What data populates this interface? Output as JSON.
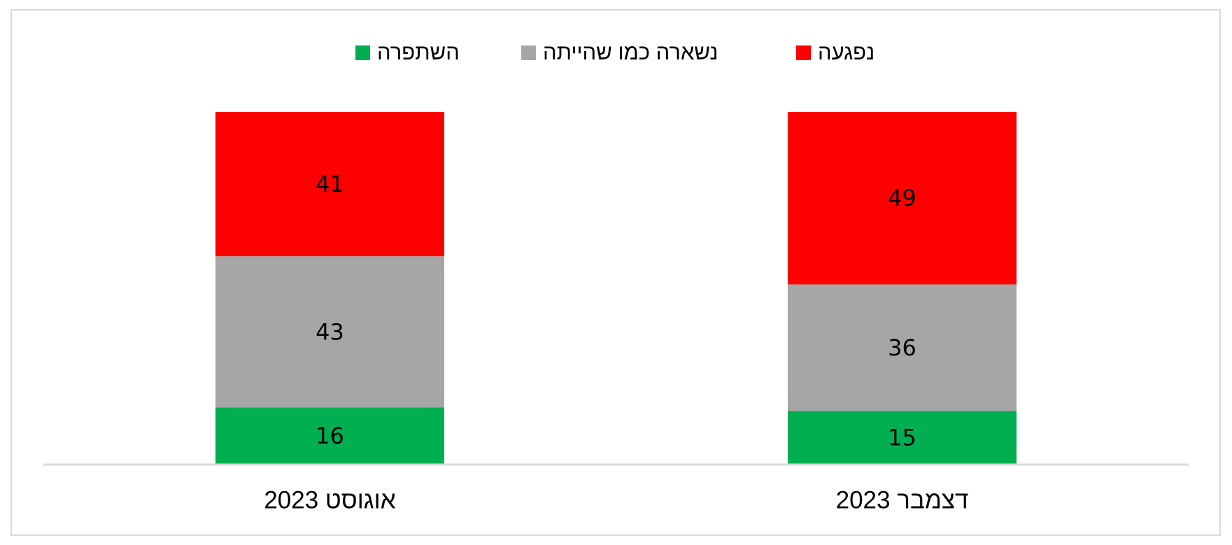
{
  "chart_data": {
    "type": "stacked_bar",
    "categories": [
      "אוגוסט 2023",
      "דצמבר 2023"
    ],
    "series": [
      {
        "name": "השתפרה",
        "color": "#00b050",
        "values": [
          16,
          15
        ]
      },
      {
        "name": "נשארה כמו שהייתה",
        "color": "#a6a6a6",
        "values": [
          43,
          36
        ]
      },
      {
        "name": "נפגעה",
        "color": "#ff0000",
        "values": [
          41,
          49
        ]
      }
    ],
    "ylim": [
      0,
      100
    ],
    "legend": "top"
  }
}
